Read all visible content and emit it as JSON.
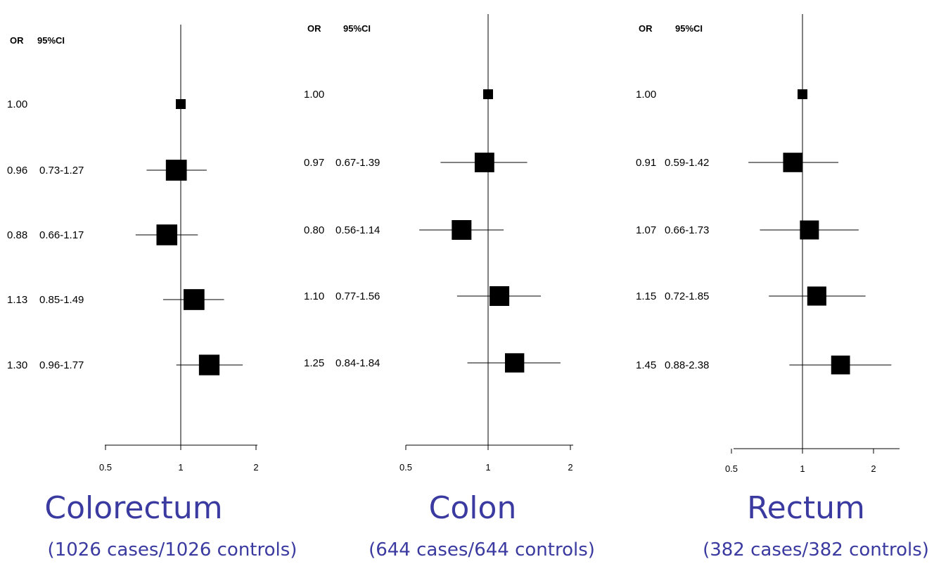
{
  "headers": {
    "or": "OR",
    "ci": "95%CI"
  },
  "chart_data": [
    {
      "type": "forest",
      "title": "Colorectum",
      "subtitle": "(1026 cases/1026 controls)",
      "xscale": "log",
      "xticks": [
        "0.5",
        "1",
        "2"
      ],
      "reference": 1,
      "rows": [
        {
          "or": "1.00",
          "ci": ""
        },
        {
          "or": "0.96",
          "ci": "0.73-1.27"
        },
        {
          "or": "0.88",
          "ci": "0.66-1.17"
        },
        {
          "or": "1.13",
          "ci": "0.85-1.49"
        },
        {
          "or": "1.30",
          "ci": "0.96-1.77"
        }
      ]
    },
    {
      "type": "forest",
      "title": "Colon",
      "subtitle": "(644 cases/644 controls)",
      "xscale": "log",
      "xticks": [
        "0.5",
        "1",
        "2"
      ],
      "reference": 1,
      "rows": [
        {
          "or": "1.00",
          "ci": ""
        },
        {
          "or": "0.97",
          "ci": "0.67-1.39"
        },
        {
          "or": "0.80",
          "ci": "0.56-1.14"
        },
        {
          "or": "1.10",
          "ci": "0.77-1.56"
        },
        {
          "or": "1.25",
          "ci": "0.84-1.84"
        }
      ]
    },
    {
      "type": "forest",
      "title": "Rectum",
      "subtitle": "(382 cases/382 controls)",
      "xscale": "log",
      "xticks": [
        "0.5",
        "1",
        "2"
      ],
      "reference": 1,
      "rows": [
        {
          "or": "1.00",
          "ci": ""
        },
        {
          "or": "0.91",
          "ci": "0.59-1.42"
        },
        {
          "or": "1.07",
          "ci": "0.66-1.73"
        },
        {
          "or": "1.15",
          "ci": "0.72-1.85"
        },
        {
          "or": "1.45",
          "ci": "0.88-2.38"
        }
      ]
    }
  ]
}
